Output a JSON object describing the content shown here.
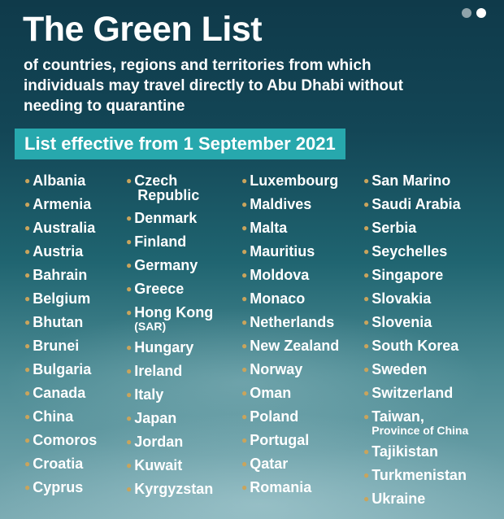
{
  "title": "The Green List",
  "subtitle": "of countries, regions and territories from which individuals may travel directly to Abu Dhabi without needing to quarantine",
  "banner": "List effective from 1 September 2021",
  "colors": {
    "banner": "#27a8ad",
    "bullet": "#c9a45c",
    "background": "#134656"
  },
  "pager_dots": 2,
  "columns": [
    [
      {
        "name": "Albania"
      },
      {
        "name": "Armenia"
      },
      {
        "name": "Australia"
      },
      {
        "name": "Austria"
      },
      {
        "name": "Bahrain"
      },
      {
        "name": "Belgium"
      },
      {
        "name": "Bhutan"
      },
      {
        "name": "Brunei"
      },
      {
        "name": "Bulgaria"
      },
      {
        "name": "Canada"
      },
      {
        "name": "China"
      },
      {
        "name": "Comoros"
      },
      {
        "name": "Croatia"
      },
      {
        "name": "Cyprus"
      }
    ],
    [
      {
        "name": "Czech",
        "second": "Republic"
      },
      {
        "name": "Denmark"
      },
      {
        "name": "Finland"
      },
      {
        "name": "Germany"
      },
      {
        "name": "Greece"
      },
      {
        "name": "Hong Kong",
        "second": "(SAR)"
      },
      {
        "name": "Hungary"
      },
      {
        "name": "Ireland"
      },
      {
        "name": "Italy"
      },
      {
        "name": "Japan"
      },
      {
        "name": "Jordan"
      },
      {
        "name": "Kuwait"
      },
      {
        "name": "Kyrgyzstan"
      }
    ],
    [
      {
        "name": "Luxembourg"
      },
      {
        "name": "Maldives"
      },
      {
        "name": "Malta"
      },
      {
        "name": "Mauritius"
      },
      {
        "name": "Moldova"
      },
      {
        "name": "Monaco"
      },
      {
        "name": "Netherlands"
      },
      {
        "name": "New Zealand"
      },
      {
        "name": "Norway"
      },
      {
        "name": "Oman"
      },
      {
        "name": "Poland"
      },
      {
        "name": "Portugal"
      },
      {
        "name": "Qatar"
      },
      {
        "name": "Romania"
      }
    ],
    [
      {
        "name": "San Marino"
      },
      {
        "name": "Saudi Arabia"
      },
      {
        "name": "Serbia"
      },
      {
        "name": "Seychelles"
      },
      {
        "name": "Singapore"
      },
      {
        "name": "Slovakia"
      },
      {
        "name": "Slovenia"
      },
      {
        "name": "South Korea"
      },
      {
        "name": "Sweden"
      },
      {
        "name": "Switzerland"
      },
      {
        "name": "Taiwan,",
        "second": "Province of China"
      },
      {
        "name": "Tajikistan"
      },
      {
        "name": "Turkmenistan"
      },
      {
        "name": "Ukraine"
      }
    ]
  ]
}
